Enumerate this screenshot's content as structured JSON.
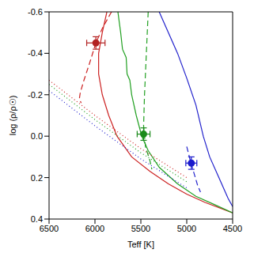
{
  "chart_data": {
    "type": "line",
    "x_label": "Teff [K]",
    "y_label": "log (ρ/ρ☉)",
    "xlim": [
      6500,
      4500
    ],
    "ylim": [
      0.4,
      -0.6
    ],
    "xticks": [
      6500,
      6000,
      5500,
      5000,
      4500
    ],
    "yticks": [
      -0.6,
      -0.4,
      -0.2,
      {
        "value": 0,
        "label": "0.0"
      },
      0.2,
      0.4
    ],
    "grid": false,
    "series": [
      {
        "type": "line",
        "color": "#cc2222",
        "line_style": "solid",
        "x": [
          5870,
          5920,
          5960,
          5960,
          5920,
          5850,
          5760,
          5600,
          5400,
          5200,
          5000,
          4800,
          4500
        ],
        "values": [
          -0.6,
          -0.5,
          -0.4,
          -0.3,
          -0.2,
          -0.1,
          0.0,
          0.1,
          0.17,
          0.23,
          0.28,
          0.32,
          0.37
        ]
      },
      {
        "type": "line",
        "color": "#cc2222",
        "line_style": "dashed",
        "x": [
          5820,
          5920,
          5990,
          6060,
          6120,
          6160,
          6170,
          6150
        ],
        "values": [
          -0.6,
          -0.52,
          -0.45,
          -0.35,
          -0.27,
          -0.21,
          -0.18,
          -0.16
        ]
      },
      {
        "type": "line",
        "color": "#22a022",
        "line_style": "solid",
        "x": [
          5750,
          5720,
          5700,
          5660,
          5650,
          5620,
          5600,
          5550,
          5490,
          5420,
          5300,
          5100,
          4900,
          4700,
          4500
        ],
        "values": [
          -0.6,
          -0.5,
          -0.42,
          -0.38,
          -0.3,
          -0.27,
          -0.2,
          -0.1,
          0.0,
          0.07,
          0.15,
          0.23,
          0.29,
          0.33,
          0.37
        ]
      },
      {
        "type": "line",
        "color": "#22a022",
        "line_style": "dashed",
        "x": [
          5420,
          5440,
          5460,
          5470,
          5450,
          5400,
          5380
        ],
        "values": [
          -0.6,
          -0.4,
          -0.2,
          -0.05,
          0.05,
          0.12,
          0.16
        ]
      },
      {
        "type": "line",
        "color": "#2222cc",
        "line_style": "solid",
        "x": [
          5300,
          5200,
          5100,
          5000,
          4900,
          4820,
          4750,
          4650,
          4550,
          4500
        ],
        "values": [
          -0.6,
          -0.5,
          -0.4,
          -0.28,
          -0.15,
          0.0,
          0.1,
          0.2,
          0.3,
          0.34
        ]
      },
      {
        "type": "line",
        "color": "#2222cc",
        "line_style": "dashed",
        "x": [
          5000,
          4960,
          4920,
          4880,
          4850
        ],
        "values": [
          0.05,
          0.12,
          0.18,
          0.24,
          0.27
        ]
      },
      {
        "type": "line",
        "color": "#cc2222",
        "line_style": "dotted",
        "x": [
          6500,
          6000,
          5500,
          5000
        ],
        "values": [
          -0.27,
          -0.1,
          0.06,
          0.2
        ]
      },
      {
        "type": "line",
        "color": "#22a022",
        "line_style": "dotted",
        "x": [
          6500,
          6000,
          5500,
          5000
        ],
        "values": [
          -0.25,
          -0.08,
          0.08,
          0.22
        ]
      },
      {
        "type": "line",
        "color": "#2222cc",
        "line_style": "dotted",
        "x": [
          6500,
          6000,
          5500,
          5000
        ],
        "values": [
          -0.22,
          -0.05,
          0.11,
          0.25
        ]
      },
      {
        "type": "scatter",
        "marker": "circle",
        "color": "#b22222",
        "x": [
          5990
        ],
        "values": [
          -0.45
        ],
        "x_error": [
          100
        ],
        "y_error": [
          0.03
        ]
      },
      {
        "type": "scatter",
        "marker": "circle",
        "color": "#1a8a1a",
        "x": [
          5470
        ],
        "values": [
          -0.01
        ],
        "x_error": [
          70
        ],
        "y_error": [
          0.03
        ]
      },
      {
        "type": "scatter",
        "marker": "circle",
        "color": "#1a1acc",
        "x": [
          4950
        ],
        "values": [
          0.13
        ],
        "x_error": [
          60
        ],
        "y_error": [
          0.03
        ]
      }
    ]
  }
}
